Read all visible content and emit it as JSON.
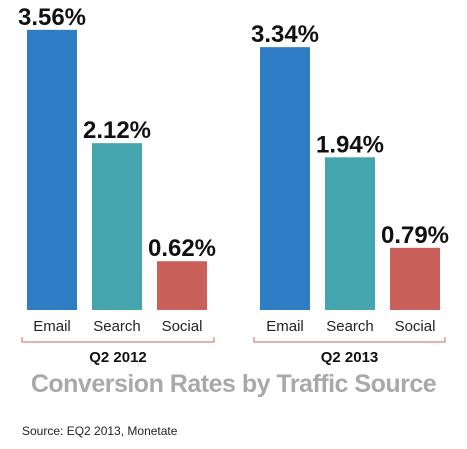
{
  "chart_data": [
    {
      "type": "bar",
      "group_label": "Q2 2012",
      "categories": [
        "Email",
        "Search",
        "Social"
      ],
      "values": [
        3.56,
        2.12,
        0.62
      ],
      "value_labels": [
        "3.56%",
        "2.12%",
        "0.62%"
      ],
      "colors": [
        "#2f7ec5",
        "#45a5ae",
        "#c9605a"
      ]
    },
    {
      "type": "bar",
      "group_label": "Q2 2013",
      "categories": [
        "Email",
        "Search",
        "Social"
      ],
      "values": [
        3.34,
        1.94,
        0.79
      ],
      "value_labels": [
        "3.34%",
        "1.94%",
        "0.79%"
      ],
      "colors": [
        "#2f7ec5",
        "#45a5ae",
        "#c9605a"
      ]
    }
  ],
  "title": "Conversion Rates by Traffic Source",
  "source": "Source: EQ2 2013, Monetate",
  "bracket_color": "#d98580"
}
